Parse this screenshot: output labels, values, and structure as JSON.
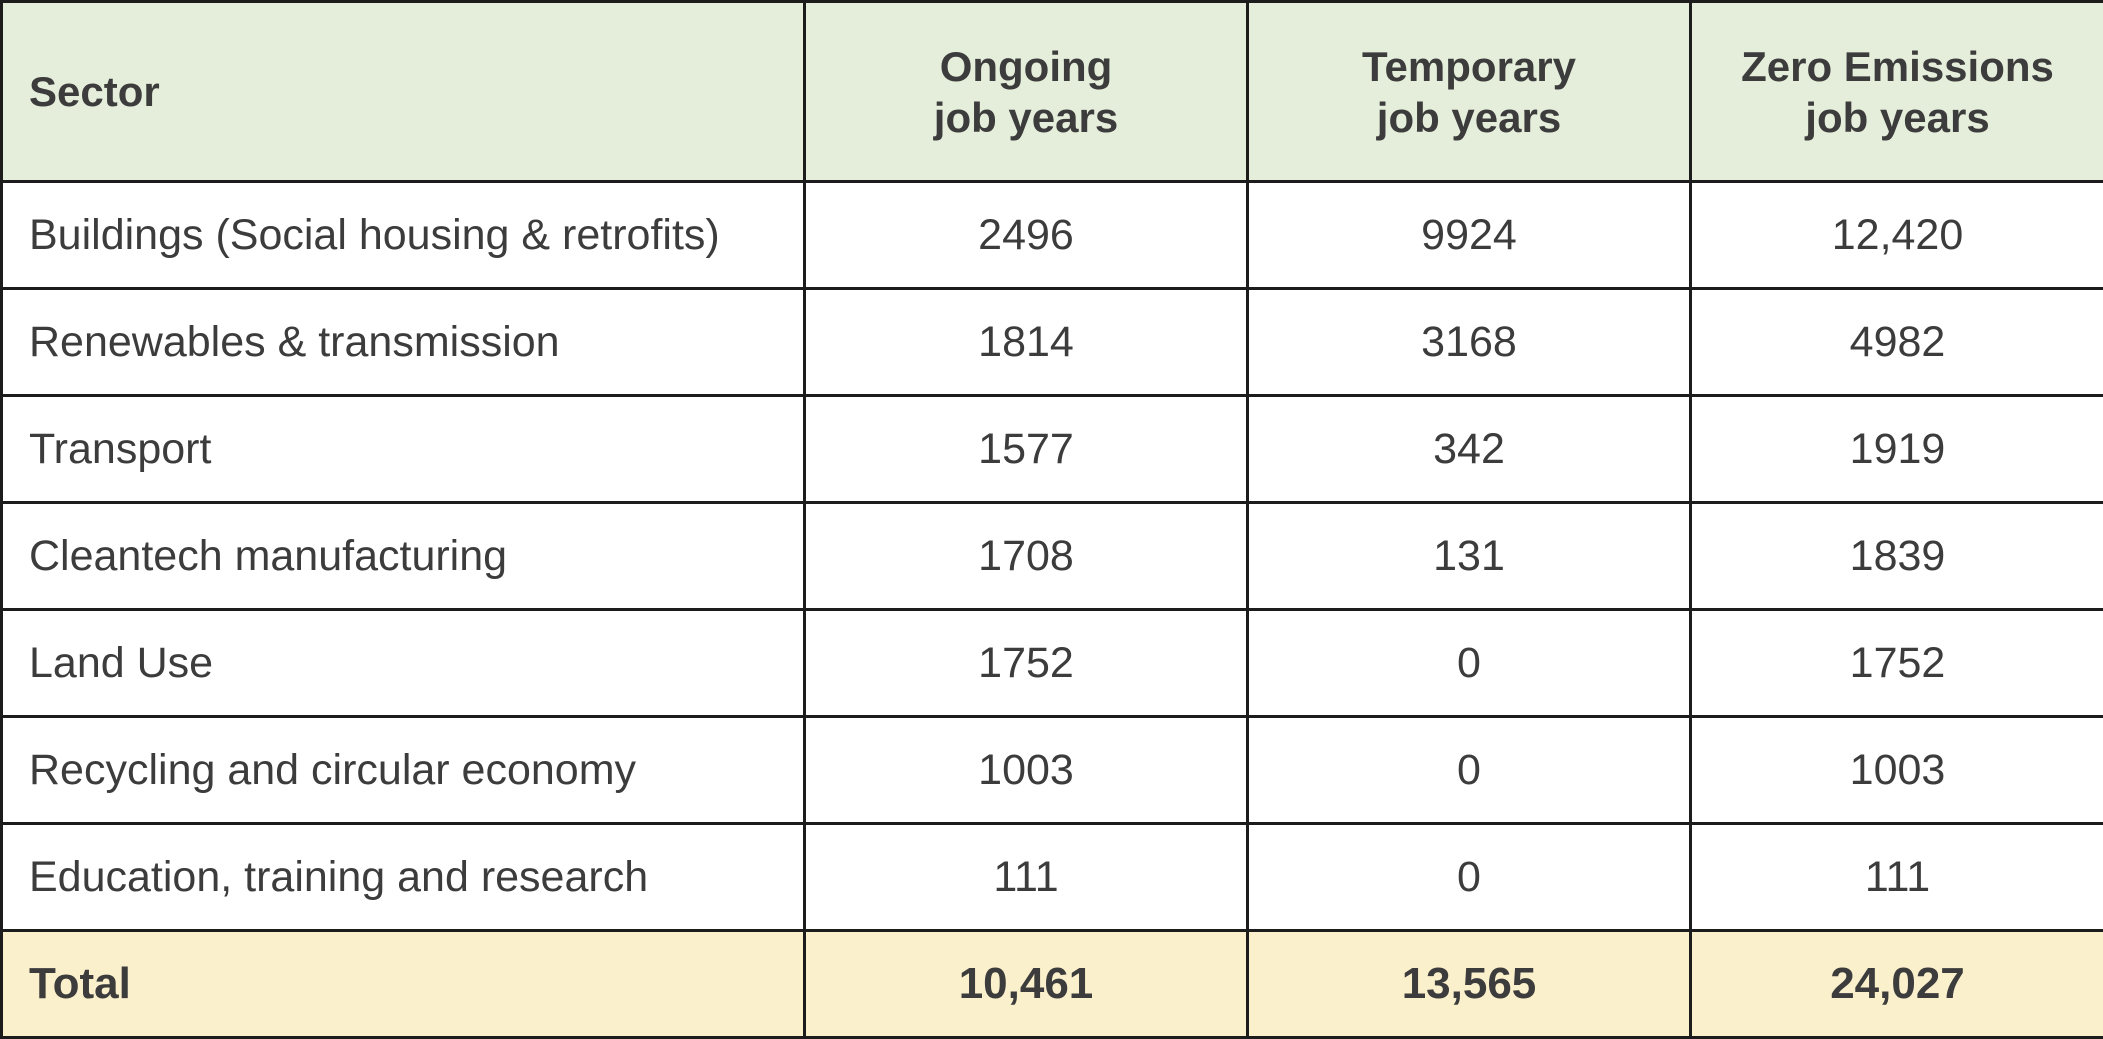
{
  "table": {
    "headers": {
      "sector": "Sector",
      "ongoing": [
        "Ongoing",
        "job years"
      ],
      "temporary": [
        "Temporary",
        "job years"
      ],
      "zero": [
        "Zero Emissions",
        "job years"
      ]
    },
    "rows": [
      {
        "sector": "Buildings (Social housing & retrofits)",
        "ongoing": "2496",
        "temporary": "9924",
        "zero": "12,420"
      },
      {
        "sector": "Renewables & transmission",
        "ongoing": "1814",
        "temporary": "3168",
        "zero": "4982"
      },
      {
        "sector": "Transport",
        "ongoing": "1577",
        "temporary": "342",
        "zero": "1919"
      },
      {
        "sector": "Cleantech manufacturing",
        "ongoing": "1708",
        "temporary": "131",
        "zero": "1839"
      },
      {
        "sector": "Land Use",
        "ongoing": "1752",
        "temporary": "0",
        "zero": "1752"
      },
      {
        "sector": "Recycling and circular economy",
        "ongoing": "1003",
        "temporary": "0",
        "zero": "1003"
      },
      {
        "sector": "Education, training and research",
        "ongoing": "111",
        "temporary": "0",
        "zero": "111"
      }
    ],
    "total": {
      "label": "Total",
      "ongoing": "10,461",
      "temporary": "13,565",
      "zero": "24,027"
    }
  },
  "colors": {
    "header_background": "#e5eedb",
    "total_background": "#fbf0cc",
    "border": "#1c1c1c",
    "text": "#3c3c3c"
  }
}
